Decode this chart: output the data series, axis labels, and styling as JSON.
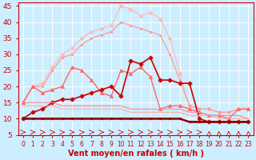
{
  "x": [
    0,
    1,
    2,
    3,
    4,
    5,
    6,
    7,
    8,
    9,
    10,
    11,
    12,
    13,
    14,
    15,
    16,
    17,
    18,
    19,
    20,
    21,
    22,
    23
  ],
  "series": [
    {
      "y": [
        15,
        20,
        21,
        26,
        30,
        32,
        35,
        37,
        38,
        39,
        45,
        44,
        42,
        43,
        41,
        35,
        24,
        14,
        13,
        13,
        12,
        12,
        13,
        13
      ],
      "color": "#ffbbbb",
      "lw": 0.9,
      "marker": "D",
      "ms": 2.5
    },
    {
      "y": [
        15,
        20,
        20,
        25,
        29,
        30,
        33,
        35,
        36,
        37,
        40,
        39,
        38,
        37,
        36,
        30,
        22,
        14,
        13,
        13,
        12,
        12,
        13,
        13
      ],
      "color": "#ff9999",
      "lw": 0.9,
      "marker": "s",
      "ms": 2.0
    },
    {
      "y": [
        15,
        20,
        18,
        19,
        20,
        26,
        25,
        22,
        18,
        17,
        25,
        24,
        26,
        23,
        13,
        14,
        14,
        13,
        12,
        11,
        11,
        10,
        13,
        13
      ],
      "color": "#ff6666",
      "lw": 1.0,
      "marker": "^",
      "ms": 3.0
    },
    {
      "y": [
        10,
        12,
        13,
        15,
        16,
        16,
        17,
        18,
        19,
        20,
        17,
        28,
        27,
        29,
        22,
        22,
        21,
        21,
        10,
        9,
        9,
        9,
        9,
        9
      ],
      "color": "#cc0000",
      "lw": 1.2,
      "marker": "P",
      "ms": 3.5
    },
    {
      "y": [
        15,
        15,
        15,
        15,
        14,
        14,
        14,
        14,
        14,
        14,
        14,
        13,
        13,
        13,
        13,
        13,
        13,
        12,
        12,
        11,
        11,
        11,
        11,
        10
      ],
      "color": "#ff8888",
      "lw": 0.8,
      "marker": null,
      "ms": 0
    },
    {
      "y": [
        14,
        14,
        14,
        14,
        13,
        13,
        13,
        13,
        13,
        13,
        13,
        12,
        12,
        12,
        12,
        12,
        12,
        11,
        11,
        11,
        10,
        10,
        10,
        10
      ],
      "color": "#ffaaaa",
      "lw": 0.8,
      "marker": null,
      "ms": 0
    },
    {
      "y": [
        10,
        10,
        10,
        10,
        10,
        10,
        10,
        10,
        10,
        10,
        10,
        10,
        10,
        10,
        10,
        10,
        10,
        9,
        9,
        9,
        9,
        9,
        9,
        9
      ],
      "color": "#cc0000",
      "lw": 1.2,
      "marker": "o",
      "ms": 2.0
    },
    {
      "y": [
        10,
        10,
        10,
        10,
        10,
        10,
        10,
        10,
        10,
        10,
        10,
        10,
        10,
        10,
        10,
        10,
        10,
        9,
        9,
        9,
        9,
        9,
        9,
        9
      ],
      "color": "#aa0000",
      "lw": 1.5,
      "marker": null,
      "ms": 0
    },
    {
      "y": [
        10,
        10,
        10,
        10,
        10,
        10,
        10,
        10,
        10,
        10,
        10,
        10,
        10,
        10,
        10,
        10,
        10,
        9,
        9,
        9,
        9,
        9,
        9,
        9
      ],
      "color": "#880000",
      "lw": 1.5,
      "marker": null,
      "ms": 0
    }
  ],
  "xlabel": "Vent moyen/en rafales ( km/h )",
  "xlim": [
    -0.5,
    23.5
  ],
  "ylim": [
    5,
    46
  ],
  "yticks": [
    5,
    10,
    15,
    20,
    25,
    30,
    35,
    40,
    45
  ],
  "xticks": [
    0,
    1,
    2,
    3,
    4,
    5,
    6,
    7,
    8,
    9,
    10,
    11,
    12,
    13,
    14,
    15,
    16,
    17,
    18,
    19,
    20,
    21,
    22,
    23
  ],
  "bg_color": "#cceeff",
  "grid_color": "#ffffff",
  "axis_color": "#cc0000",
  "tick_color": "#cc0000",
  "label_color": "#cc0000",
  "xlabel_fontsize": 7,
  "ytick_fontsize": 6.5,
  "xtick_fontsize": 5.5
}
